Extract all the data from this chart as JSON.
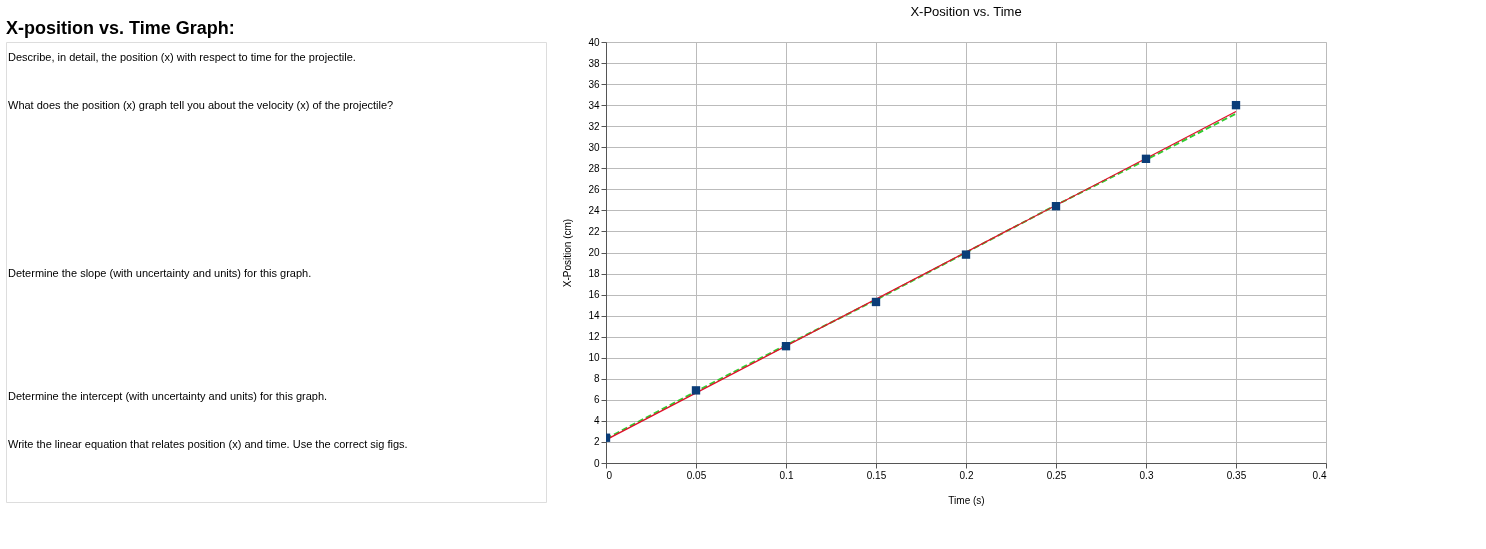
{
  "chart_data": [
    {
      "type": "other",
      "title": "X-position vs. Time Graph:",
      "annotations": [
        "Describe, in detail, the position (x) with respect to time for the projectile.",
        "What does the position (x) graph tell you about the velocity (x) of the projectile?",
        "Determine the slope (with uncertainty and units) for this graph.",
        "Determine the intercept (with uncertainty and units) for this graph.",
        "Write the linear equation that relates position (x) and time. Use the correct sig figs."
      ]
    },
    {
      "type": "scatter",
      "title": "X-Position vs. Time",
      "xlabel": "Time (s)",
      "ylabel": "X-Position (cm)",
      "x": [
        0,
        0.05,
        0.1,
        0.15,
        0.2,
        0.25,
        0.3,
        0.35
      ],
      "series": [
        {
          "type": "line",
          "color": "#33cc33",
          "line_style": "dashed",
          "x": [
            0,
            0.05,
            0.1,
            0.15,
            0.2,
            0.25,
            0.3,
            0.35
          ],
          "values": [
            2.3,
            6.8,
            11.2,
            15.5,
            20.0,
            24.5,
            28.8,
            33.2
          ]
        },
        {
          "type": "line",
          "color": "#e0102a",
          "line_style": "solid",
          "x": [
            0,
            0.35
          ],
          "values": [
            2.2,
            33.4
          ]
        },
        {
          "type": "scatter",
          "color": "#0b3d78",
          "marker": "square",
          "values": [
            2.4,
            6.9,
            11.1,
            15.3,
            19.8,
            24.4,
            28.9,
            34.0
          ]
        }
      ],
      "xlim": [
        0,
        0.4
      ],
      "xticks": [
        0,
        0.05,
        0.1,
        0.15,
        0.2,
        0.25,
        0.3,
        0.35,
        0.4
      ],
      "ylim": [
        0,
        40
      ],
      "yticks": [
        0,
        2,
        4,
        6,
        8,
        10,
        12,
        14,
        16,
        18,
        20,
        22,
        24,
        26,
        28,
        30,
        32,
        34,
        36,
        38,
        40
      ],
      "grid": true
    }
  ]
}
